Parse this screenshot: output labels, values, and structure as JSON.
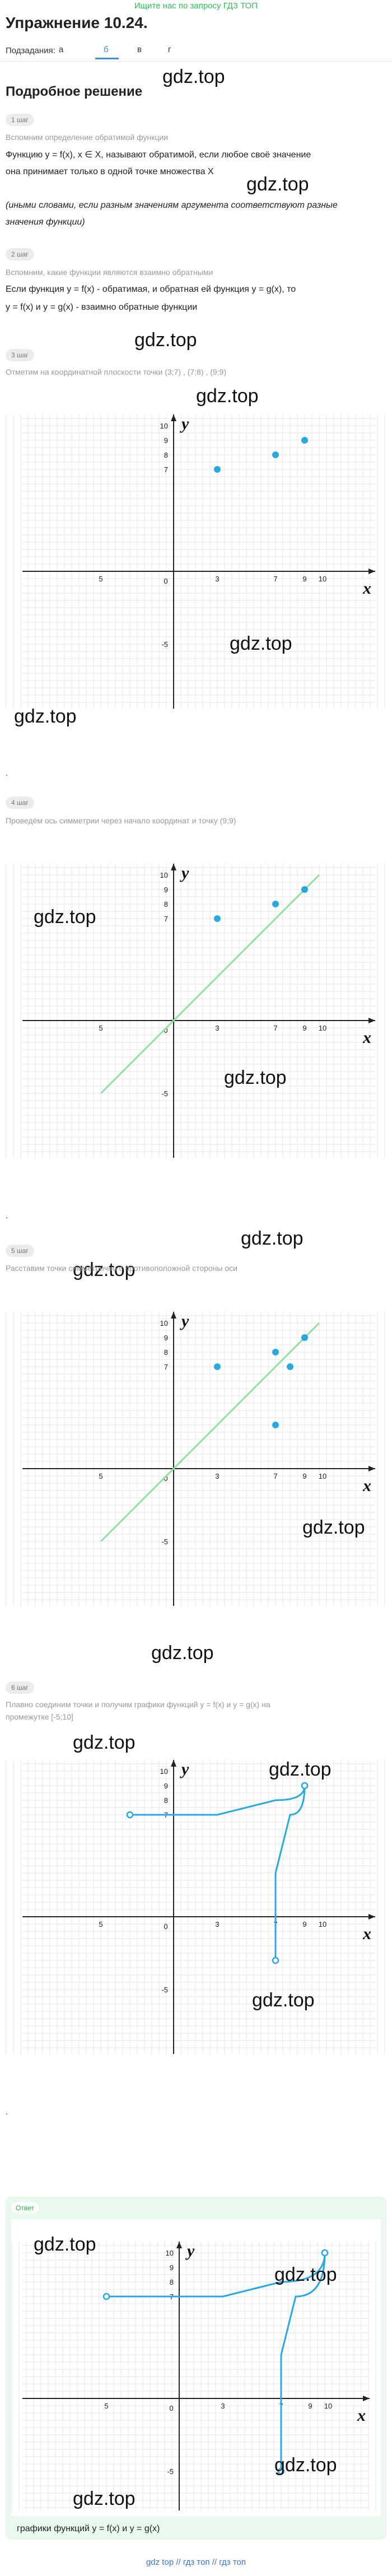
{
  "banner": "Ищите нас по запросу ГДЗ ТОП",
  "title": "Упражнение 10.24.",
  "subtasks": {
    "label": "Подзадания:",
    "items": [
      "а",
      "б",
      "в",
      "г"
    ],
    "active": 1
  },
  "section_title": "Подробное решение",
  "watermark": "gdz.top",
  "steps": [
    {
      "label": "1 шаг",
      "caption": "Вспомним определение обратимой функции",
      "lines": [
        "Функцию y = f(x), x ∈ X, называют обратимой, если любое своё значение",
        "она принимает только в одной точке множества X",
        "(иными словами, если разным значениям аргумента соответствуют разные",
        "значения функции)"
      ]
    },
    {
      "label": "2 шаг",
      "caption": "Вспомним, какие функции являются взаимно обратными",
      "lines": [
        "Если функция y = f(x) - обратимая, и обратная ей функция y = g(x), то",
        "y = f(x) и y = g(x) - взаимно обратные функции"
      ]
    },
    {
      "label": "3 шаг",
      "caption": "Отметим на координатной плоскости точки (3;7) , (7;8) , (9;9)"
    },
    {
      "label": "4 шаг",
      "caption": "Проведём ось симметрии через начало координат и точку (9;9)"
    },
    {
      "label": "5 шаг",
      "caption": "Расставим точки симметрично с противоположной стороны оси"
    },
    {
      "label": "6 шаг",
      "caption_lines": [
        "Плавно соединим точки и получим графики функций y = f(x) и y = g(x) на",
        "промежутке [-5;10]"
      ]
    }
  ],
  "answer": {
    "label": "Ответ",
    "caption": "графики функций y = f(x) и y = g(x)"
  },
  "axis": {
    "x": "x",
    "y": "y",
    "origin": "0",
    "ticks_x": [
      "5",
      "3",
      "7",
      "9",
      "10"
    ],
    "ticks_y": [
      "10",
      "9",
      "8",
      "7",
      "-5"
    ]
  },
  "colors": {
    "point": "#29a8e0",
    "symmetry_line": "#8fe0a8",
    "curve": "#29a8e0"
  },
  "chart_data": [
    {
      "type": "scatter",
      "points": [
        [
          3,
          7
        ],
        [
          7,
          8
        ],
        [
          9,
          9
        ]
      ]
    },
    {
      "type": "scatter",
      "points": [
        [
          3,
          7
        ],
        [
          7,
          8
        ],
        [
          9,
          9
        ]
      ],
      "line": [
        [
          -5,
          -5
        ],
        [
          10,
          10
        ]
      ]
    },
    {
      "type": "scatter",
      "points": [
        [
          3,
          7
        ],
        [
          7,
          8
        ],
        [
          9,
          9
        ],
        [
          7,
          3
        ],
        [
          8,
          7
        ]
      ],
      "line": [
        [
          -5,
          -5
        ],
        [
          10,
          10
        ]
      ]
    },
    {
      "type": "line",
      "series": [
        {
          "x": [
            -3,
            3,
            7,
            9
          ],
          "y": [
            7,
            7,
            8,
            9
          ]
        },
        {
          "x": [
            7,
            7,
            8,
            9
          ],
          "y": [
            -3,
            3,
            7,
            9
          ]
        }
      ]
    },
    {
      "type": "line",
      "series": [
        {
          "x": [
            -5,
            3,
            7,
            10
          ],
          "y": [
            7,
            7,
            8,
            10
          ]
        },
        {
          "x": [
            7,
            7,
            8,
            10
          ],
          "y": [
            -5,
            3,
            7,
            10
          ]
        }
      ]
    }
  ],
  "footer": "gdz top // гдз топ // гдз топ"
}
